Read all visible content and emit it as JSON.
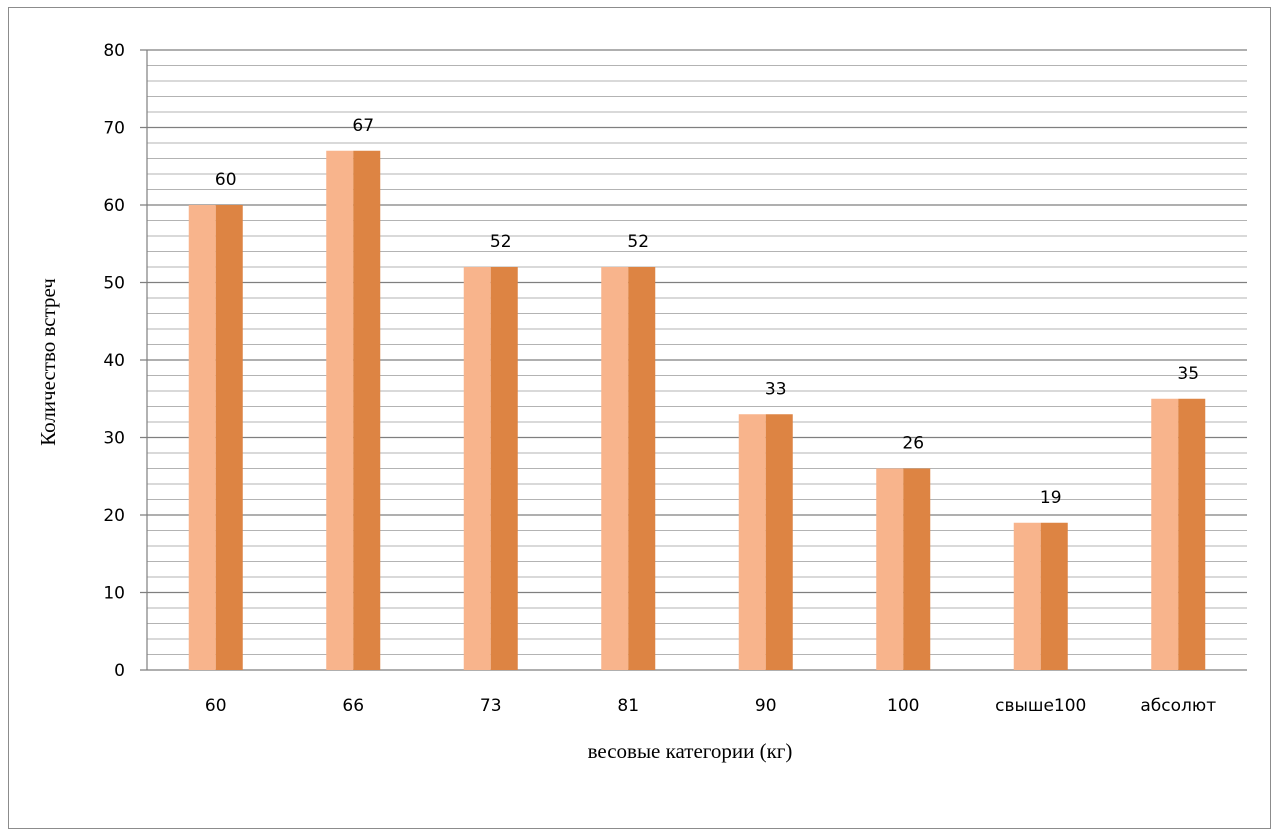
{
  "chart_data": {
    "type": "bar",
    "categories": [
      "60",
      "66",
      "73",
      "81",
      "90",
      "100",
      "свыше100",
      "абсолют"
    ],
    "series": [
      {
        "values": [
          60,
          67,
          52,
          52,
          33,
          26,
          19,
          35
        ],
        "color": "#f8b48c"
      },
      {
        "values": [
          60,
          67,
          52,
          52,
          33,
          26,
          19,
          35
        ],
        "color": "#dd8443"
      }
    ],
    "data_labels": [
      60,
      67,
      52,
      52,
      33,
      26,
      19,
      35
    ],
    "xlabel": "весовые категории (кг)",
    "ylabel": "Количество встреч",
    "ylim": [
      0,
      80
    ],
    "y_ticks": [
      0,
      10,
      20,
      30,
      40,
      50,
      60,
      70,
      80
    ],
    "minor_gridline_step": 2,
    "grid": true,
    "legend": "none"
  }
}
